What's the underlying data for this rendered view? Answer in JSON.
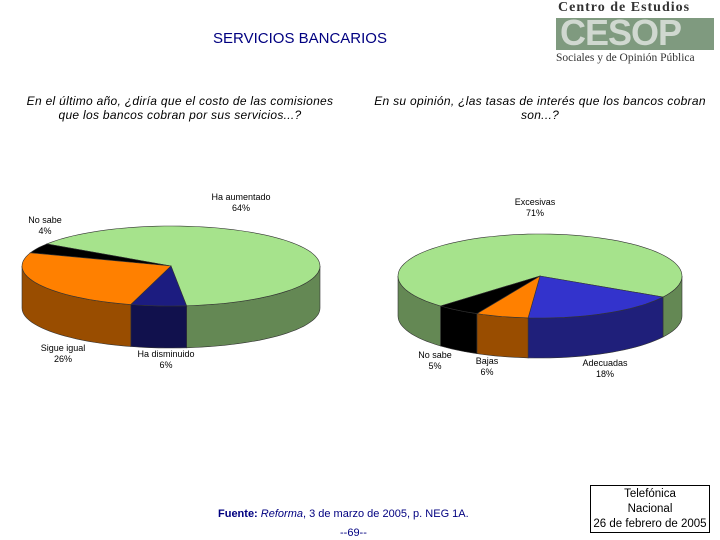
{
  "header": {
    "title": "SERVICIOS BANCARIOS"
  },
  "logo": {
    "line1": "Centro de Estudios",
    "brand": "CESOP",
    "line2": "Sociales y de Opinión Pública"
  },
  "chart_data": [
    {
      "type": "pie",
      "title": "En el último año, ¿diría que el costo de las comisiones que los bancos cobran por sus servicios...?",
      "categories": [
        "Ha aumentado",
        "No sabe",
        "Sigue igual",
        "Ha disminuido"
      ],
      "values": [
        64,
        4,
        26,
        6
      ],
      "value_labels": [
        "64%",
        "4%",
        "26%",
        "6%"
      ],
      "colors": [
        "#a6e38c",
        "#000000",
        "#ff8000",
        "#1c1c80"
      ]
    },
    {
      "type": "pie",
      "title": "En su opinión, ¿las tasas de interés que los bancos cobran son...?",
      "categories": [
        "Excesivas",
        "Adecuadas",
        "Bajas",
        "No sabe"
      ],
      "values": [
        71,
        18,
        6,
        5
      ],
      "value_labels": [
        "71%",
        "18%",
        "6%",
        "5%"
      ],
      "colors": [
        "#a6e38c",
        "#3333cc",
        "#ff8000",
        "#000000"
      ]
    }
  ],
  "footer": {
    "source_label": "Fuente:",
    "source_work": "Reforma",
    "source_rest": ", 3 de marzo de 2005, p. NEG 1A.",
    "page": "--69--",
    "box": [
      "Telefónica",
      "Nacional",
      "26 de febrero de 2005"
    ]
  }
}
